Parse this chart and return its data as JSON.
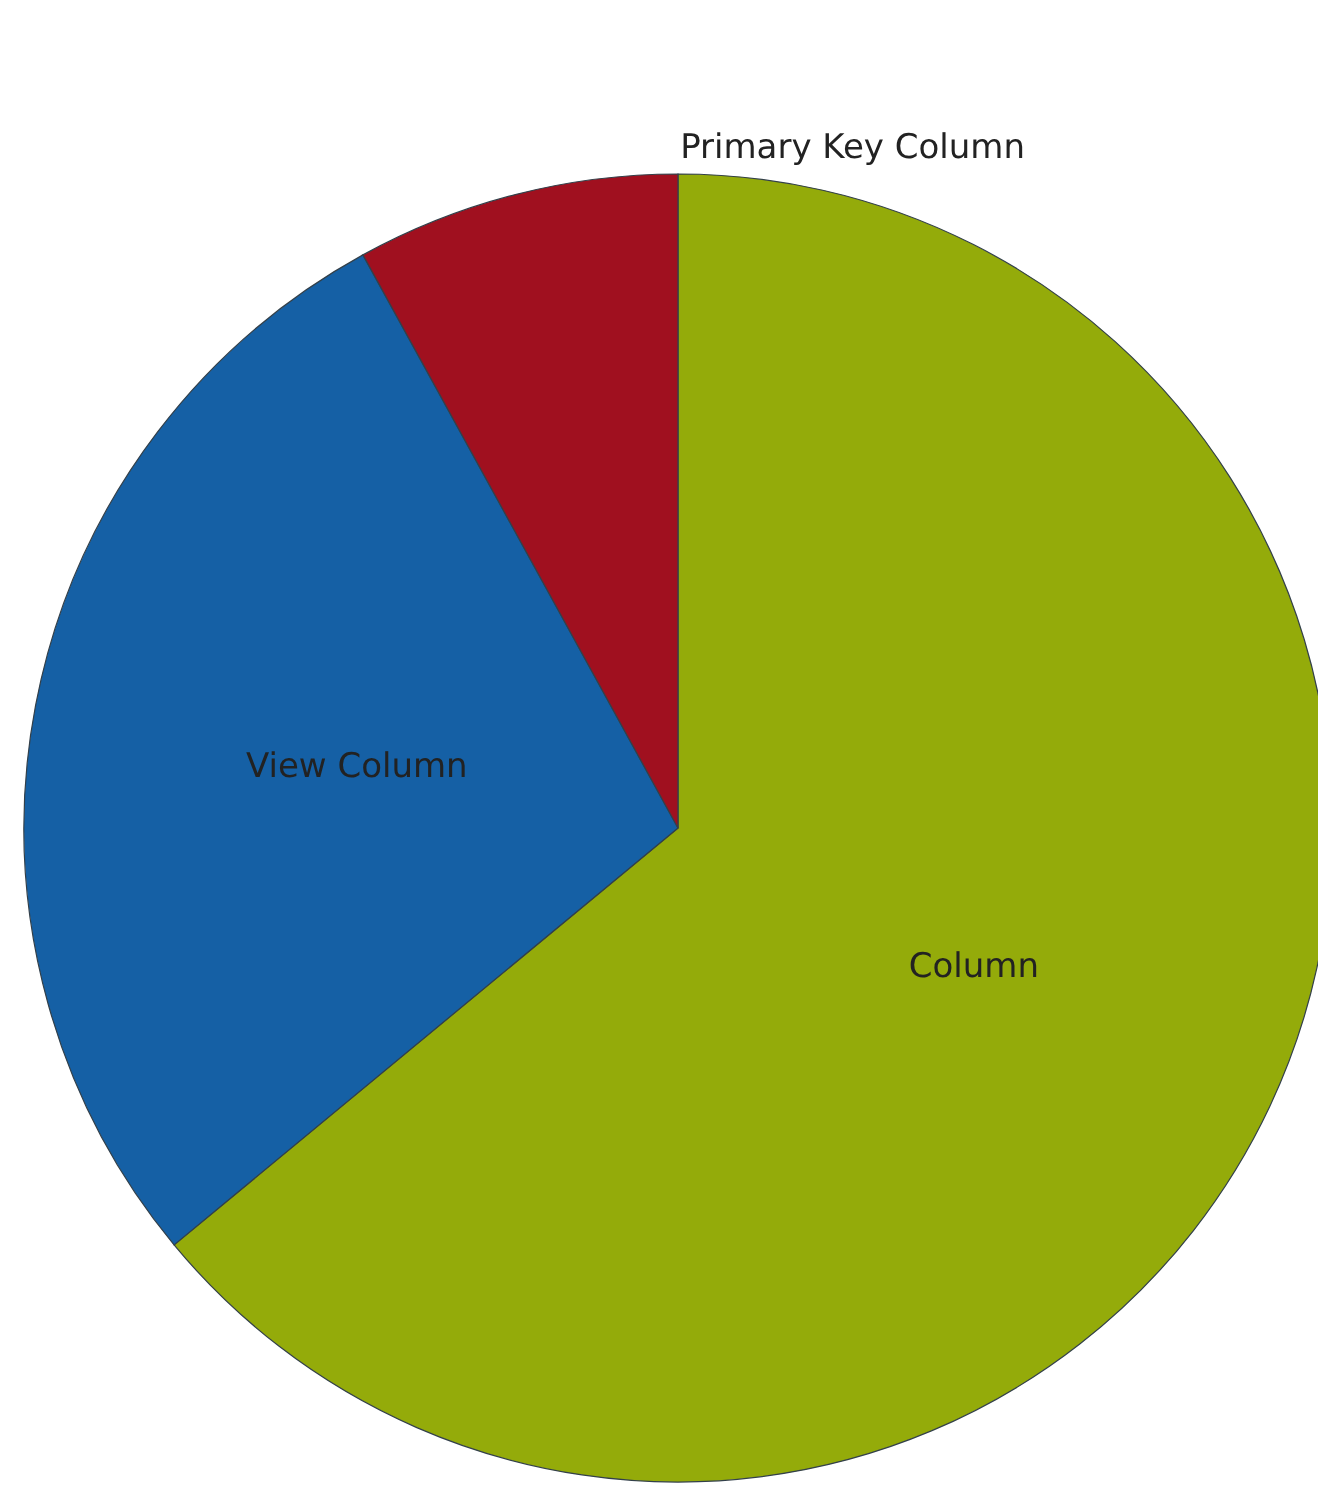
{
  "chart_data": {
    "type": "pie",
    "categories": [
      "Column",
      "View Column",
      "Primary Key Column"
    ],
    "values": [
      64,
      28,
      8
    ],
    "colors": [
      "#94ab0a",
      "#1560a5",
      "#a0101f"
    ]
  }
}
